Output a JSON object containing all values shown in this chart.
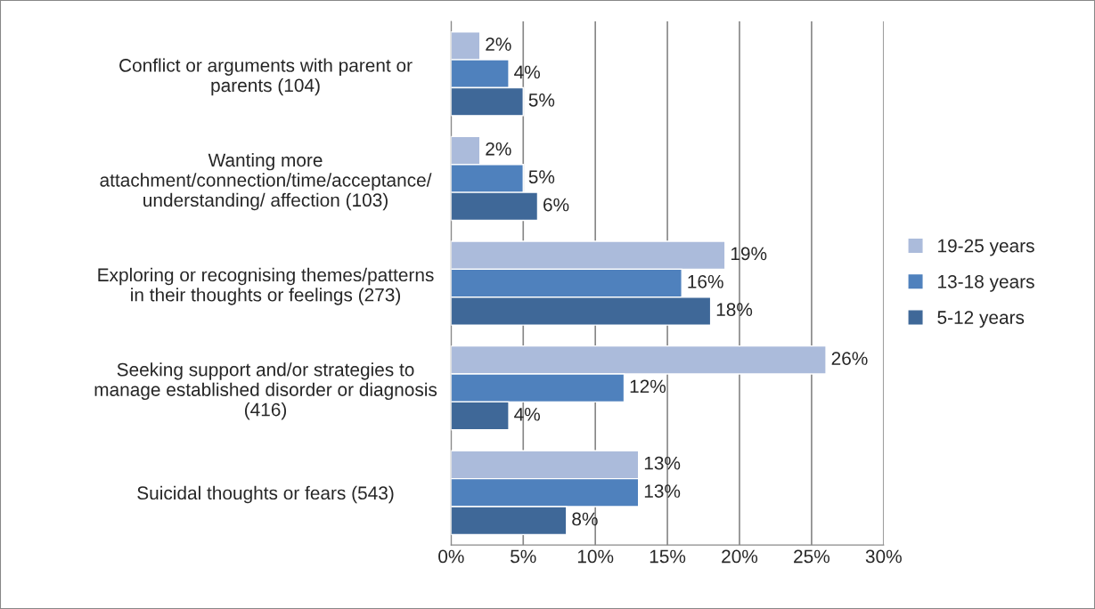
{
  "chart_data": {
    "type": "bar",
    "orientation": "horizontal",
    "categories": [
      "Conflict or arguments with parent or\nparents (104)",
      "Wanting more\nattachment/connection/time/acceptance/\nunderstanding/ affection (103)",
      "Exploring or recognising themes/patterns\nin their thoughts or feelings (273)",
      "Seeking support and/or strategies to\nmanage established disorder or diagnosis\n(416)",
      "Suicidal thoughts or fears (543)"
    ],
    "series": [
      {
        "name": "19-25 years",
        "color": "#abbbdb",
        "values": [
          2,
          2,
          19,
          26,
          13
        ],
        "value_labels": [
          "2%",
          "2%",
          "19%",
          "26%",
          "13%"
        ]
      },
      {
        "name": "13-18 years",
        "color": "#4f81bd",
        "values": [
          4,
          5,
          16,
          12,
          13
        ],
        "value_labels": [
          "4%",
          "5%",
          "16%",
          "12%",
          "13%"
        ]
      },
      {
        "name": "5-12 years",
        "color": "#3f6898",
        "values": [
          5,
          6,
          18,
          4,
          8
        ],
        "value_labels": [
          "5%",
          "6%",
          "18%",
          "4%",
          "8%"
        ]
      }
    ],
    "xlim": [
      0,
      30
    ],
    "xticks": [
      {
        "value": 0,
        "label": "0%"
      },
      {
        "value": 5,
        "label": "5%"
      },
      {
        "value": 10,
        "label": "10%"
      },
      {
        "value": 15,
        "label": "15%"
      },
      {
        "value": 20,
        "label": "20%"
      },
      {
        "value": 25,
        "label": "25%"
      },
      {
        "value": 30,
        "label": "30%"
      }
    ],
    "grid": "x",
    "legend": "right"
  }
}
